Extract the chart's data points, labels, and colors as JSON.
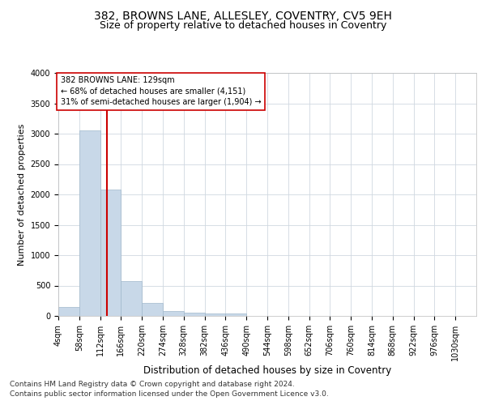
{
  "title1": "382, BROWNS LANE, ALLESLEY, COVENTRY, CV5 9EH",
  "title2": "Size of property relative to detached houses in Coventry",
  "xlabel": "Distribution of detached houses by size in Coventry",
  "ylabel": "Number of detached properties",
  "footer1": "Contains HM Land Registry data © Crown copyright and database right 2024.",
  "footer2": "Contains public sector information licensed under the Open Government Licence v3.0.",
  "annotation_line1": "382 BROWNS LANE: 129sqm",
  "annotation_line2": "← 68% of detached houses are smaller (4,151)",
  "annotation_line3": "31% of semi-detached houses are larger (1,904) →",
  "property_size": 129,
  "bar_color": "#c8d8e8",
  "bar_edge_color": "#a0b8cc",
  "line_color": "#cc0000",
  "annotation_box_color": "#ffffff",
  "annotation_box_edge": "#cc0000",
  "background_color": "#ffffff",
  "grid_color": "#d0d8e0",
  "bins": [
    4,
    58,
    112,
    166,
    220,
    274,
    328,
    382,
    436,
    490,
    544,
    598,
    652,
    706,
    760,
    814,
    868,
    922,
    976,
    1030,
    1084
  ],
  "counts": [
    150,
    3060,
    2080,
    570,
    215,
    80,
    55,
    45,
    40,
    0,
    0,
    0,
    0,
    0,
    0,
    0,
    0,
    0,
    0,
    0
  ],
  "ylim": [
    0,
    4000
  ],
  "yticks": [
    0,
    500,
    1000,
    1500,
    2000,
    2500,
    3000,
    3500,
    4000
  ],
  "title1_fontsize": 10,
  "title2_fontsize": 9,
  "tick_fontsize": 7,
  "ylabel_fontsize": 8,
  "xlabel_fontsize": 8.5,
  "annotation_fontsize": 7,
  "footer_fontsize": 6.5
}
